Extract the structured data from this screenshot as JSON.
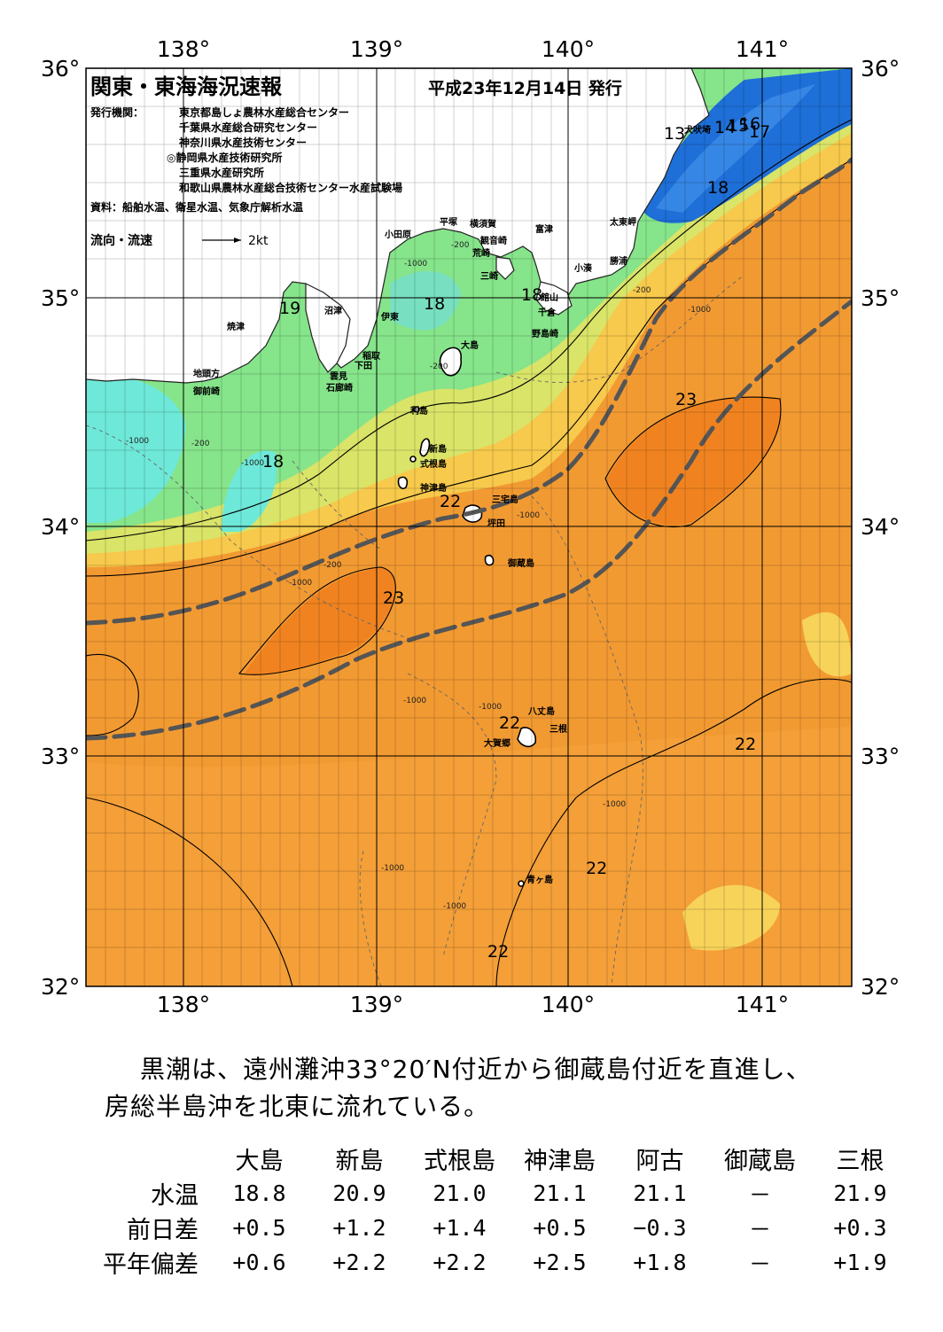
{
  "title": "関東・東海海況速報",
  "issue_date": "平成23年12月14日 発行",
  "issuers_label": "発行機関：",
  "issuers": [
    "東京都島しょ農林水産総合センター",
    "千葉県水産総合研究センター",
    "神奈川県水産技術センター",
    "◎静岡県水産技術研究所",
    "三重県水産研究所",
    "和歌山県農林水産総合技術センター水産試験場"
  ],
  "sources": "資料：船舶水温、衛星水温、気象庁解析水温",
  "current_legend": {
    "label": "流向・流速",
    "unit": "2kt"
  },
  "axes": {
    "lon_labels": [
      "138°",
      "139°",
      "140°",
      "141°"
    ],
    "lat_labels": [
      "36°",
      "35°",
      "34°",
      "33°",
      "32°"
    ],
    "lon_range": [
      137.5,
      141.5
    ],
    "lat_range": [
      32,
      36
    ]
  },
  "temp_labels": [
    "13",
    "14",
    "15",
    "16",
    "17",
    "18",
    "18",
    "18",
    "19",
    "18",
    "18",
    "22",
    "23",
    "23",
    "22",
    "22",
    "22",
    "22"
  ],
  "depth_labels": [
    "-200",
    "-1000"
  ],
  "place_names": [
    "犬吠埼",
    "太東岬",
    "勝浦",
    "小湊",
    "富津",
    "横須賀",
    "観音崎",
    "平塚",
    "荒崎",
    "三崎",
    "小田原",
    "館山",
    "千倉",
    "野島崎",
    "沼津",
    "伊東",
    "大島",
    "稲取",
    "下田",
    "雲見",
    "石廊崎",
    "焼津",
    "地頭方",
    "御前崎",
    "利島",
    "新島",
    "式根島",
    "神津島",
    "三宅島",
    "坪田",
    "御蔵島",
    "八丈島",
    "三根",
    "大賀郷",
    "青ヶ島"
  ],
  "colors": {
    "warm": "#f29a32",
    "warm_core": "#f08320",
    "yellow": "#f7d35a",
    "green": "#86e48a",
    "cyan": "#6ee8d8",
    "blue": "#1e6fd8",
    "land": "#ffffff",
    "kuroshio": "#555555"
  },
  "narrative": [
    "黒潮は、遠州灘沖33°20′N付近から御蔵島付近を直進し、",
    "房総半島沖を北東に流れている。"
  ],
  "stats": {
    "columns": [
      "大島",
      "新島",
      "式根島",
      "神津島",
      "阿古",
      "御蔵島",
      "三根"
    ],
    "rows": [
      {
        "label": "水温",
        "values": [
          "18.8",
          "20.9",
          "21.0",
          "21.1",
          "21.1",
          "－",
          "21.9"
        ]
      },
      {
        "label": "前日差",
        "values": [
          "+0.5",
          "+1.2",
          "+1.4",
          "+0.5",
          "−0.3",
          "－",
          "+0.3"
        ]
      },
      {
        "label": "平年偏差",
        "values": [
          "+0.6",
          "+2.2",
          "+2.2",
          "+2.5",
          "+1.8",
          "－",
          "+1.9"
        ]
      }
    ]
  }
}
